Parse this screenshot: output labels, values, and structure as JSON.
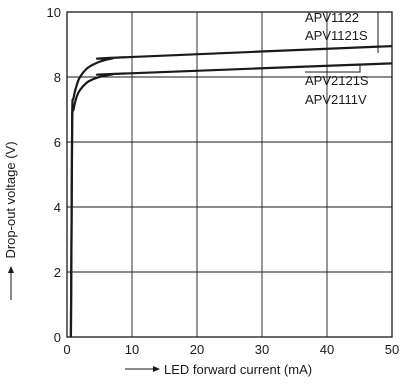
{
  "chart_data": {
    "type": "line",
    "xlabel": "LED forward current (mA)",
    "ylabel": "Drop-out voltage (V)",
    "xlim": [
      0,
      50
    ],
    "ylim": [
      0,
      10
    ],
    "xticks": [
      0,
      10,
      20,
      30,
      40,
      50
    ],
    "yticks": [
      0,
      2,
      4,
      6,
      8,
      10
    ],
    "grid": true,
    "series": [
      {
        "labels": [
          "APV1122",
          "APV1121S"
        ],
        "color": "#1a1a1a",
        "x": [
          0.6,
          0.7,
          0.8,
          1.0,
          1.5,
          2.0,
          3.0,
          4.0,
          5.0,
          6.0,
          7.0,
          8.0,
          50.0
        ],
        "y": [
          0.0,
          3.5,
          6.9,
          7.35,
          7.75,
          8.0,
          8.25,
          8.38,
          8.47,
          8.53,
          8.57,
          8.6,
          8.95
        ]
      },
      {
        "labels": [
          "APV2121S",
          "APV2111V"
        ],
        "color": "#1a1a1a",
        "x": [
          0.6,
          0.7,
          0.8,
          1.0,
          1.5,
          2.0,
          3.0,
          4.0,
          5.0,
          6.0,
          7.0,
          8.0,
          50.0
        ],
        "y": [
          0.0,
          3.3,
          6.6,
          7.0,
          7.4,
          7.6,
          7.82,
          7.93,
          8.0,
          8.05,
          8.08,
          8.1,
          8.42
        ]
      }
    ]
  }
}
